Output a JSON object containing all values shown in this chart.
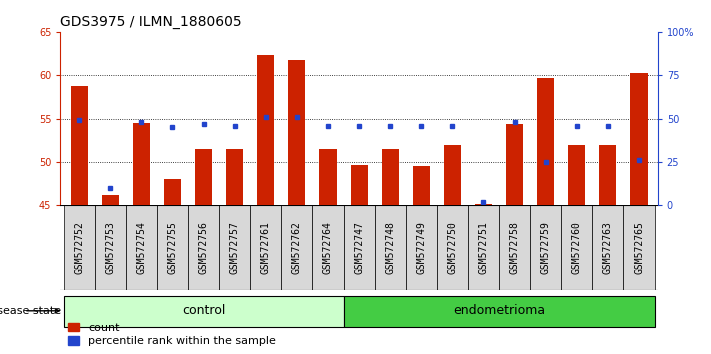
{
  "title": "GDS3975 / ILMN_1880605",
  "samples": [
    "GSM572752",
    "GSM572753",
    "GSM572754",
    "GSM572755",
    "GSM572756",
    "GSM572757",
    "GSM572761",
    "GSM572762",
    "GSM572764",
    "GSM572747",
    "GSM572748",
    "GSM572749",
    "GSM572750",
    "GSM572751",
    "GSM572758",
    "GSM572759",
    "GSM572760",
    "GSM572763",
    "GSM572765"
  ],
  "count_values": [
    58.7,
    46.2,
    54.5,
    48.0,
    51.5,
    51.5,
    62.3,
    61.7,
    51.5,
    49.7,
    51.5,
    49.5,
    52.0,
    45.2,
    54.4,
    59.7,
    52.0,
    52.0,
    60.2
  ],
  "percentile_values": [
    49,
    10,
    48,
    45,
    47,
    46,
    51,
    51,
    46,
    46,
    46,
    46,
    46,
    2,
    48,
    25,
    46,
    46,
    26
  ],
  "n_control": 9,
  "n_endometrioma": 10,
  "ylim_left": [
    45,
    65
  ],
  "ylim_right": [
    0,
    100
  ],
  "yticks_left": [
    45,
    50,
    55,
    60,
    65
  ],
  "yticks_right": [
    0,
    25,
    50,
    75,
    100
  ],
  "ytick_labels_right": [
    "0",
    "25",
    "50",
    "75",
    "100%"
  ],
  "bar_color": "#cc2200",
  "percentile_color": "#2244cc",
  "control_bg": "#ccffcc",
  "endometrioma_bg": "#44cc44",
  "sample_bg": "#d8d8d8",
  "plot_bg": "#ffffff",
  "axis_color_left": "#cc2200",
  "axis_color_right": "#2244cc",
  "bar_width": 0.55,
  "title_fontsize": 10,
  "tick_fontsize": 7,
  "group_label_fontsize": 9,
  "legend_fontsize": 8,
  "disease_state_fontsize": 8
}
